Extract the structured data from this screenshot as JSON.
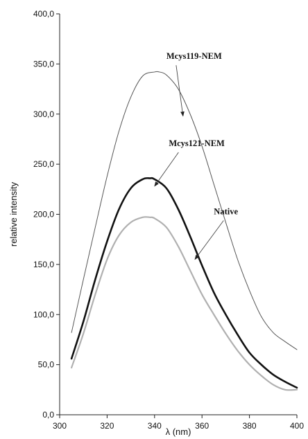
{
  "chart_data": {
    "type": "line",
    "title": "",
    "xlabel": "λ (nm)",
    "ylabel": "relative intensity",
    "xlim": [
      300,
      400
    ],
    "ylim": [
      0,
      400
    ],
    "x_ticks": [
      300,
      320,
      340,
      360,
      380,
      400
    ],
    "x_tick_labels": [
      "300",
      "320",
      "340",
      "360",
      "380",
      "400"
    ],
    "y_ticks": [
      0,
      50,
      100,
      150,
      200,
      250,
      300,
      350,
      400
    ],
    "y_tick_labels": [
      "0,0",
      "50,0",
      "100,0",
      "150,0",
      "200,0",
      "250,0",
      "300,0",
      "350,0",
      "400,0"
    ],
    "grid": false,
    "series": [
      {
        "name": "Mcys119-NEM",
        "style": "thin dark gray",
        "color": "#555555",
        "x": [
          305,
          310,
          315,
          320,
          325,
          330,
          335,
          340,
          342,
          345,
          350,
          355,
          360,
          365,
          370,
          375,
          380,
          385,
          390,
          395,
          400
        ],
        "y": [
          82,
          135,
          187,
          238,
          283,
          317,
          338,
          342,
          342,
          339,
          325,
          300,
          268,
          230,
          192,
          155,
          124,
          98,
          82,
          73,
          65
        ]
      },
      {
        "name": "Mcys121-NEM",
        "style": "thick black",
        "color": "#111111",
        "x": [
          305,
          310,
          315,
          320,
          325,
          330,
          335,
          338,
          340,
          345,
          350,
          355,
          360,
          365,
          370,
          375,
          380,
          385,
          390,
          395,
          400
        ],
        "y": [
          56,
          93,
          135,
          173,
          205,
          226,
          235,
          236,
          235,
          226,
          205,
          178,
          149,
          122,
          100,
          80,
          62,
          50,
          40,
          33,
          27
        ]
      },
      {
        "name": "Native",
        "style": "medium light gray",
        "color": "#b0b0b0",
        "x": [
          305,
          310,
          315,
          320,
          325,
          330,
          335,
          338,
          340,
          345,
          350,
          355,
          360,
          365,
          370,
          375,
          380,
          385,
          390,
          395,
          400
        ],
        "y": [
          47,
          81,
          120,
          155,
          179,
          192,
          197,
          197,
          196,
          187,
          168,
          144,
          120,
          100,
          81,
          64,
          50,
          39,
          30,
          25,
          25
        ]
      }
    ],
    "annotations": [
      {
        "text": "Mcys119-NEM",
        "series": 0,
        "label_at": [
          345,
          355
        ],
        "arrow_to": [
          352,
          298
        ]
      },
      {
        "text": "Mcys121-NEM",
        "series": 1,
        "label_at": [
          346,
          268
        ],
        "arrow_to": [
          340,
          228
        ]
      },
      {
        "text": "Native",
        "series": 2,
        "label_at": [
          365,
          200
        ],
        "arrow_to": [
          357,
          155
        ]
      }
    ]
  }
}
